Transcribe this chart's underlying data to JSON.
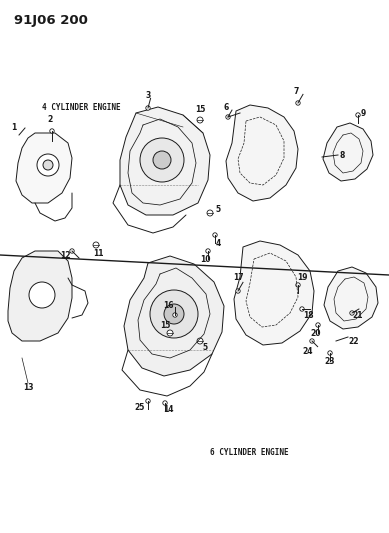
{
  "title": "91J06 200",
  "bg_color": "#ffffff",
  "line_color": "#1a1a1a",
  "label_4cyl": "4 CYLINDER ENGINE",
  "label_6cyl": "6 CYLINDER ENGINE",
  "figsize": [
    3.89,
    5.33
  ],
  "dpi": 100
}
